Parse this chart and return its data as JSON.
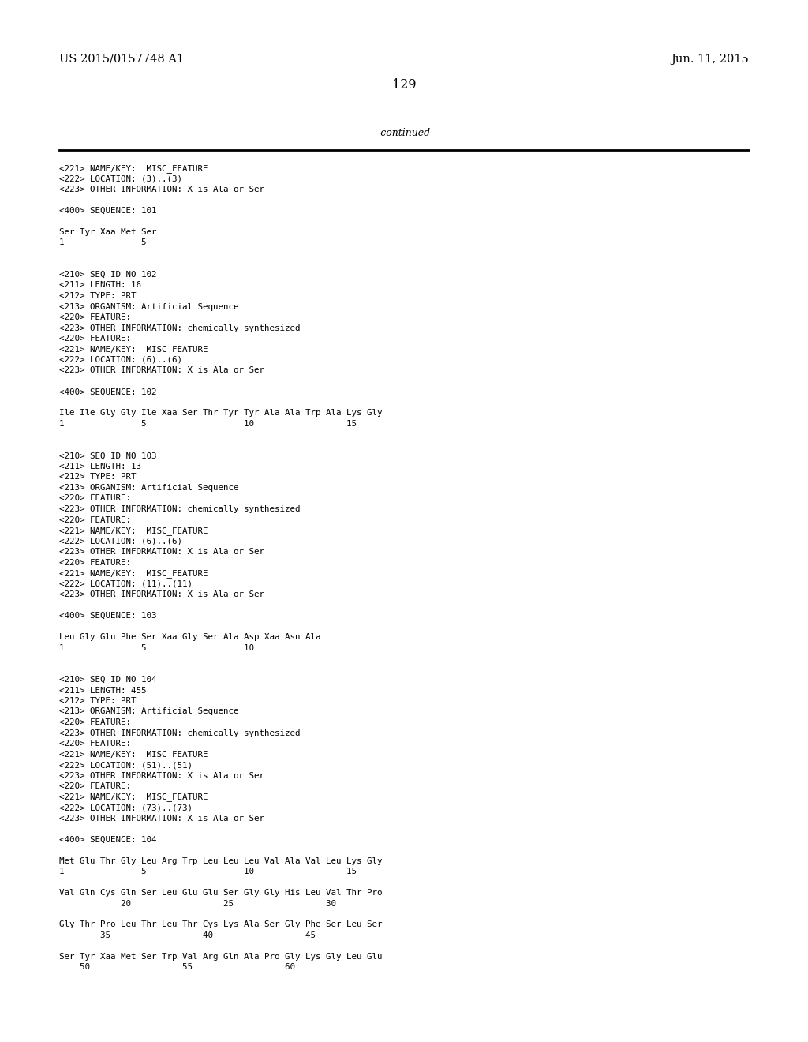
{
  "background_color": "#ffffff",
  "header_left": "US 2015/0157748 A1",
  "header_right": "Jun. 11, 2015",
  "page_number": "129",
  "continued_text": "-continued",
  "body_lines": [
    "<221> NAME/KEY:  MISC_FEATURE",
    "<222> LOCATION: (3)..(3)",
    "<223> OTHER INFORMATION: X is Ala or Ser",
    "",
    "<400> SEQUENCE: 101",
    "",
    "Ser Tyr Xaa Met Ser",
    "1               5",
    "",
    "",
    "<210> SEQ ID NO 102",
    "<211> LENGTH: 16",
    "<212> TYPE: PRT",
    "<213> ORGANISM: Artificial Sequence",
    "<220> FEATURE:",
    "<223> OTHER INFORMATION: chemically synthesized",
    "<220> FEATURE:",
    "<221> NAME/KEY:  MISC_FEATURE",
    "<222> LOCATION: (6)..(6)",
    "<223> OTHER INFORMATION: X is Ala or Ser",
    "",
    "<400> SEQUENCE: 102",
    "",
    "Ile Ile Gly Gly Ile Xaa Ser Thr Tyr Tyr Ala Ala Trp Ala Lys Gly",
    "1               5                   10                  15",
    "",
    "",
    "<210> SEQ ID NO 103",
    "<211> LENGTH: 13",
    "<212> TYPE: PRT",
    "<213> ORGANISM: Artificial Sequence",
    "<220> FEATURE:",
    "<223> OTHER INFORMATION: chemically synthesized",
    "<220> FEATURE:",
    "<221> NAME/KEY:  MISC_FEATURE",
    "<222> LOCATION: (6)..(6)",
    "<223> OTHER INFORMATION: X is Ala or Ser",
    "<220> FEATURE:",
    "<221> NAME/KEY:  MISC_FEATURE",
    "<222> LOCATION: (11)..(11)",
    "<223> OTHER INFORMATION: X is Ala or Ser",
    "",
    "<400> SEQUENCE: 103",
    "",
    "Leu Gly Glu Phe Ser Xaa Gly Ser Ala Asp Xaa Asn Ala",
    "1               5                   10",
    "",
    "",
    "<210> SEQ ID NO 104",
    "<211> LENGTH: 455",
    "<212> TYPE: PRT",
    "<213> ORGANISM: Artificial Sequence",
    "<220> FEATURE:",
    "<223> OTHER INFORMATION: chemically synthesized",
    "<220> FEATURE:",
    "<221> NAME/KEY:  MISC_FEATURE",
    "<222> LOCATION: (51)..(51)",
    "<223> OTHER INFORMATION: X is Ala or Ser",
    "<220> FEATURE:",
    "<221> NAME/KEY:  MISC_FEATURE",
    "<222> LOCATION: (73)..(73)",
    "<223> OTHER INFORMATION: X is Ala or Ser",
    "",
    "<400> SEQUENCE: 104",
    "",
    "Met Glu Thr Gly Leu Arg Trp Leu Leu Leu Val Ala Val Leu Lys Gly",
    "1               5                   10                  15",
    "",
    "Val Gln Cys Gln Ser Leu Glu Glu Ser Gly Gly His Leu Val Thr Pro",
    "            20                  25                  30",
    "",
    "Gly Thr Pro Leu Thr Leu Thr Cys Lys Ala Ser Gly Phe Ser Leu Ser",
    "        35                  40                  45",
    "",
    "Ser Tyr Xaa Met Ser Trp Val Arg Gln Ala Pro Gly Lys Gly Leu Glu",
    "    50                  55                  60"
  ]
}
